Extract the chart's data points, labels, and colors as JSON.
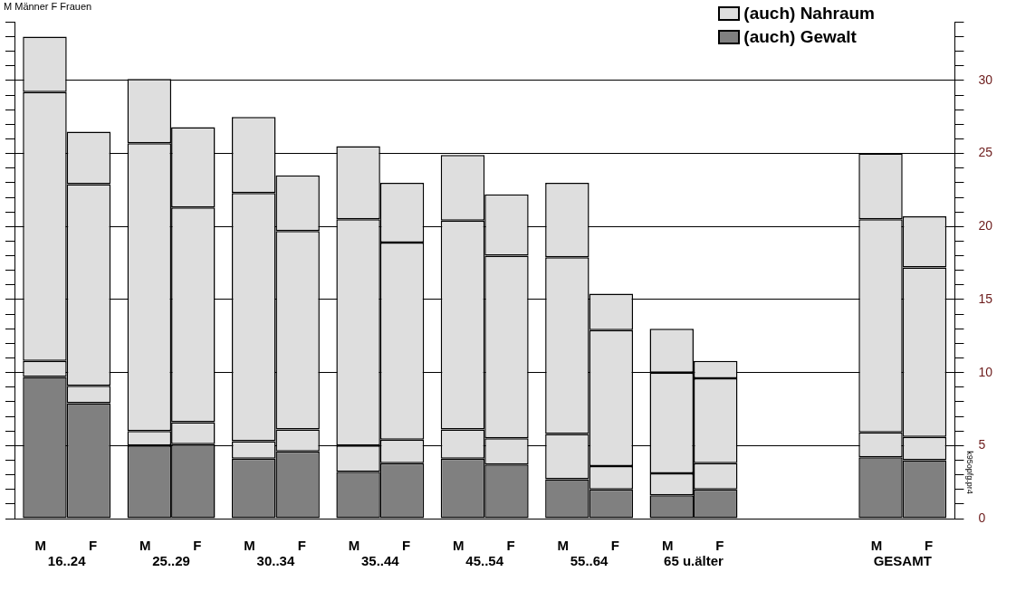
{
  "chart_data": {
    "type": "bar",
    "stacked": true,
    "categories": [
      "M",
      "F",
      "M",
      "F",
      "M",
      "F",
      "M",
      "F",
      "M",
      "F",
      "M",
      "F",
      "M",
      "F",
      null,
      null,
      "M",
      "F"
    ],
    "series": [
      {
        "name": "(auch) Gewalt",
        "color": "#808080",
        "values": [
          9.7,
          7.9,
          5.0,
          5.1,
          4.1,
          4.6,
          3.2,
          3.8,
          4.1,
          3.7,
          2.7,
          2.0,
          1.6,
          2.0,
          null,
          null,
          4.2,
          4.0
        ]
      },
      {
        "name": "(auch) Nahraum",
        "color": "#dedede",
        "values": [
          1.1,
          1.2,
          1.0,
          1.5,
          1.2,
          1.5,
          1.8,
          1.6,
          2.0,
          1.8,
          3.1,
          1.6,
          1.5,
          1.8,
          null,
          null,
          1.7,
          1.6
        ]
      },
      {
        "color": "#dedede",
        "values": [
          18.4,
          13.8,
          19.7,
          14.7,
          17.0,
          13.6,
          15.5,
          13.5,
          14.3,
          12.5,
          12.1,
          9.3,
          6.9,
          5.8,
          null,
          null,
          14.6,
          11.6
        ]
      },
      {
        "color": "#dedede",
        "values": [
          3.8,
          3.6,
          4.4,
          5.5,
          5.2,
          3.8,
          5.0,
          4.1,
          4.5,
          4.2,
          5.1,
          2.5,
          3.0,
          1.2,
          null,
          null,
          4.5,
          3.5
        ]
      }
    ],
    "ylim": [
      0,
      34
    ],
    "yticks": [
      0,
      {
        "value": 1,
        "label": null
      },
      {
        "value": 2,
        "label": null
      },
      {
        "value": 3,
        "label": null
      },
      {
        "value": 4,
        "label": null
      },
      5,
      {
        "value": 6,
        "label": null
      },
      {
        "value": 7,
        "label": null
      },
      {
        "value": 8,
        "label": null
      },
      {
        "value": 9,
        "label": null
      },
      10,
      {
        "value": 11,
        "label": null
      },
      {
        "value": 12,
        "label": null
      },
      {
        "value": 13,
        "label": null
      },
      {
        "value": 14,
        "label": null
      },
      15,
      {
        "value": 16,
        "label": null
      },
      {
        "value": 17,
        "label": null
      },
      {
        "value": 18,
        "label": null
      },
      {
        "value": 19,
        "label": null
      },
      20,
      {
        "value": 21,
        "label": null
      },
      {
        "value": 22,
        "label": null
      },
      {
        "value": 23,
        "label": null
      },
      {
        "value": 24,
        "label": null
      },
      25,
      {
        "value": 26,
        "label": null
      },
      {
        "value": 27,
        "label": null
      },
      {
        "value": 28,
        "label": null
      },
      {
        "value": 29,
        "label": null
      },
      30,
      {
        "value": 31,
        "label": null
      },
      {
        "value": 32,
        "label": null
      },
      {
        "value": 33,
        "label": null
      },
      {
        "value": 34,
        "label": null
      }
    ],
    "grid": "y",
    "legend": "top right",
    "annotations": [
      "16..24",
      "25..29",
      "30..34",
      "35..44",
      "45..54",
      "55..64",
      "65 u.älter",
      "GESAMT",
      "M Männer F Frauen",
      "k95opfg.pr4"
    ]
  }
}
